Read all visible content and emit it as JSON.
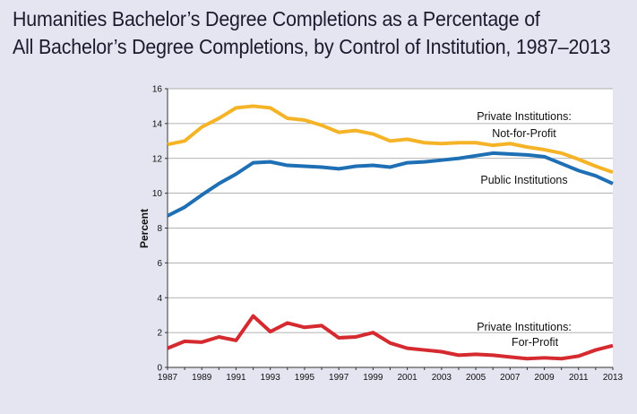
{
  "title_lines": [
    "Humanities Bachelor’s Degree Completions as a Percentage of",
    "All Bachelor’s Degree Completions, by Control of Institution, 1987–2013"
  ],
  "colors": {
    "background": "#e5e4f1",
    "plot_background": "#ffffff",
    "not_for_profit": "#f5b428",
    "public": "#1f6fb5",
    "for_profit": "#d52a2f"
  },
  "chart_data": {
    "type": "line",
    "title": "Humanities Bachelor’s Degree Completions as a Percentage of All Bachelor’s Degree Completions, by Control of Institution, 1987–2013",
    "xlabel": "",
    "ylabel": "Percent",
    "xlim": [
      1987,
      2013
    ],
    "ylim": [
      0,
      16
    ],
    "grid": true,
    "yticks": [
      0,
      2,
      4,
      6,
      8,
      10,
      12,
      14,
      16
    ],
    "xtick_labels": [
      "1987",
      "1989",
      "1991",
      "1993",
      "1995",
      "1997",
      "1999",
      "2001",
      "2003",
      "2005",
      "2007",
      "2009",
      "2011",
      "2013"
    ],
    "x": [
      1987,
      1988,
      1989,
      1990,
      1991,
      1992,
      1993,
      1994,
      1995,
      1996,
      1997,
      1998,
      1999,
      2000,
      2001,
      2002,
      2003,
      2004,
      2005,
      2006,
      2007,
      2008,
      2009,
      2010,
      2011,
      2012,
      2013
    ],
    "series": [
      {
        "key": "not_for_profit",
        "name_lines": [
          "Private Institutions:",
          "Not-for-Profit"
        ],
        "values": [
          12.8,
          13.0,
          13.8,
          14.3,
          14.9,
          15.0,
          14.9,
          14.3,
          14.2,
          13.9,
          13.5,
          13.6,
          13.4,
          13.0,
          13.1,
          12.9,
          12.85,
          12.9,
          12.9,
          12.75,
          12.85,
          12.65,
          12.5,
          12.3,
          11.95,
          11.55,
          11.2
        ]
      },
      {
        "key": "public",
        "name_lines": [
          "Public Institutions"
        ],
        "values": [
          8.7,
          9.2,
          9.9,
          10.55,
          11.1,
          11.75,
          11.8,
          11.6,
          11.55,
          11.5,
          11.4,
          11.55,
          11.6,
          11.5,
          11.75,
          11.8,
          11.9,
          12.0,
          12.15,
          12.3,
          12.25,
          12.2,
          12.1,
          11.7,
          11.3,
          11.0,
          10.55
        ]
      },
      {
        "key": "for_profit",
        "name_lines": [
          "Private Institutions:",
          "For-Profit"
        ],
        "values": [
          1.1,
          1.5,
          1.45,
          1.75,
          1.55,
          2.95,
          2.05,
          2.55,
          2.3,
          2.4,
          1.7,
          1.75,
          2.0,
          1.4,
          1.1,
          1.0,
          0.9,
          0.7,
          0.75,
          0.7,
          0.6,
          0.5,
          0.55,
          0.5,
          0.65,
          1.0,
          1.25
        ]
      }
    ]
  }
}
